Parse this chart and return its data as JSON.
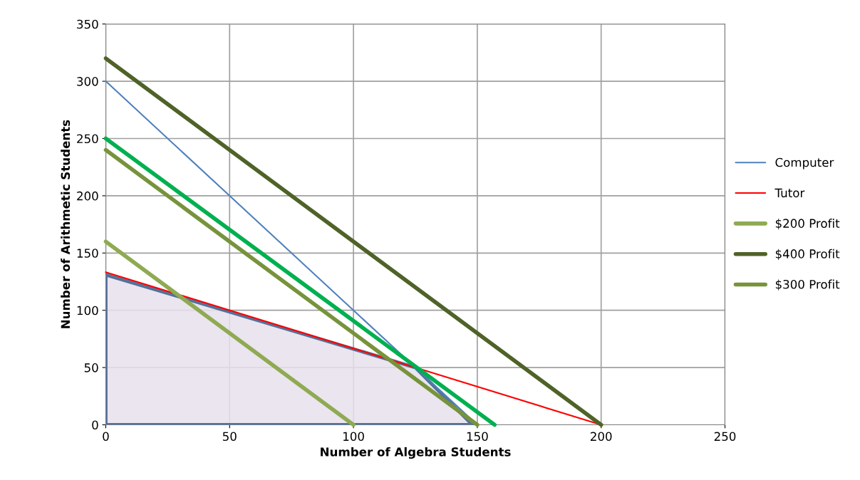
{
  "chart_data": {
    "type": "line",
    "xlabel": "Number of Algebra Students",
    "ylabel": "Number of Arithmetic Students",
    "xlim": [
      0,
      250
    ],
    "ylim": [
      0,
      350
    ],
    "xticks": [
      0,
      50,
      100,
      150,
      200,
      250
    ],
    "yticks": [
      0,
      50,
      100,
      150,
      200,
      250,
      300,
      350
    ],
    "grid": true,
    "legend": "right",
    "series": [
      {
        "type": "area",
        "color": "#e6e0ec",
        "x": [
          0,
          125,
          148
        ],
        "values": [
          131,
          50,
          0
        ]
      },
      {
        "name": "Computer",
        "color": "#4f81bd",
        "x": [
          0,
          150
        ],
        "values": [
          300,
          0
        ]
      },
      {
        "name": "Tutor",
        "color": "#ff0000",
        "x": [
          0,
          200
        ],
        "values": [
          133.3,
          0
        ]
      },
      {
        "name": "$200 Profit",
        "color": "#8faa52",
        "x": [
          0,
          100
        ],
        "values": [
          160,
          0
        ]
      },
      {
        "name": "$400 Profit",
        "color": "#4f6228",
        "x": [
          0,
          200
        ],
        "values": [
          320,
          0
        ]
      },
      {
        "name": "$300 Profit",
        "color": "#77933c",
        "x": [
          0,
          150
        ],
        "values": [
          240,
          0
        ]
      },
      {
        "color": "#00b050",
        "x": [
          0,
          157
        ],
        "values": [
          250,
          0
        ]
      }
    ]
  }
}
